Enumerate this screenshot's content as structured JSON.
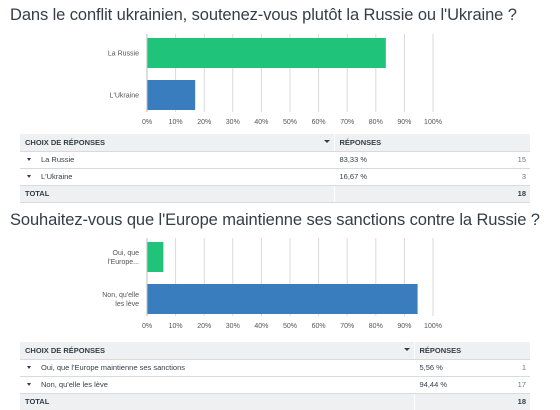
{
  "colors": {
    "green": "#1fc47a",
    "blue": "#3a7dbf",
    "grid": "#d9d9d9"
  },
  "q1": {
    "title": "Dans le conflit ukrainien, soutenez-vous plutôt la Russie ou l'Ukraine ?",
    "table": {
      "col_choice": "CHOIX DE RÉPONSES",
      "col_responses": "RÉPONSES",
      "rows": [
        {
          "label": "La Russie",
          "percent": "83,33 %",
          "count": "15"
        },
        {
          "label": "L'Ukraine",
          "percent": "16,67 %",
          "count": "3"
        }
      ],
      "total_label": "TOTAL",
      "total_count": "18"
    }
  },
  "q2": {
    "title": "Souhaitez-vous que l'Europe maintienne ses sanctions contre la Russie ?",
    "table": {
      "col_choice": "CHOIX DE RÉPONSES",
      "col_responses": "RÉPONSES",
      "rows": [
        {
          "label": "Oui, que l'Europe maintienne ses sanctions",
          "percent": "5,56 %",
          "count": "1"
        },
        {
          "label": "Non, qu'elle les lève",
          "percent": "94,44 %",
          "count": "17"
        }
      ],
      "total_label": "TOTAL",
      "total_count": "18"
    }
  },
  "chart_data": [
    {
      "type": "bar",
      "orientation": "horizontal",
      "title": "Dans le conflit ukrainien, soutenez-vous plutôt la Russie ou l'Ukraine ?",
      "categories": [
        [
          "La Russie"
        ],
        [
          "L'Ukraine"
        ]
      ],
      "values": [
        83.33,
        16.67
      ],
      "colors": [
        "#1fc47a",
        "#3a7dbf"
      ],
      "xlim": [
        0,
        100
      ],
      "ticks": [
        "0%",
        "10%",
        "20%",
        "30%",
        "40%",
        "50%",
        "60%",
        "70%",
        "80%",
        "90%",
        "100%"
      ],
      "grid": true
    },
    {
      "type": "bar",
      "orientation": "horizontal",
      "title": "Souhaitez-vous que l'Europe maintienne ses sanctions contre la Russie ?",
      "categories": [
        [
          "Oui, que",
          "l'Europe..."
        ],
        [
          "Non, qu'elle",
          "les lève"
        ]
      ],
      "values": [
        5.56,
        94.44
      ],
      "colors": [
        "#1fc47a",
        "#3a7dbf"
      ],
      "xlim": [
        0,
        100
      ],
      "ticks": [
        "0%",
        "10%",
        "20%",
        "30%",
        "40%",
        "50%",
        "60%",
        "70%",
        "80%",
        "90%",
        "100%"
      ],
      "grid": true
    }
  ]
}
